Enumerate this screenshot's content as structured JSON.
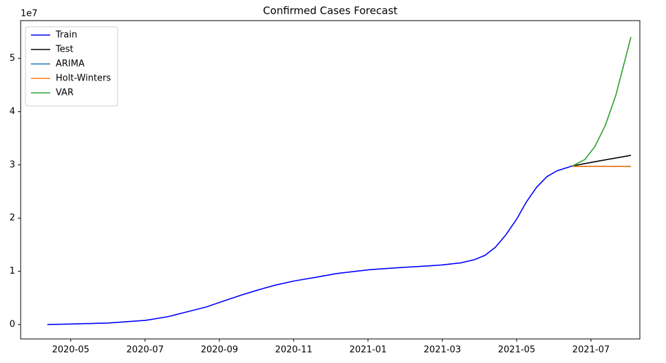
{
  "chart_data": {
    "type": "line",
    "title": "Confirmed Cases Forecast",
    "y_offset_label": "1e7",
    "xlim": [
      2020.221,
      2021.6096
    ],
    "ylim": [
      -0.27,
      5.71
    ],
    "xticks": [
      {
        "value": 2020.3333,
        "label": "2020-05"
      },
      {
        "value": 2020.5,
        "label": "2020-07"
      },
      {
        "value": 2020.6667,
        "label": "2020-09"
      },
      {
        "value": 2020.8333,
        "label": "2020-11"
      },
      {
        "value": 2021.0,
        "label": "2021-01"
      },
      {
        "value": 2021.1667,
        "label": "2021-03"
      },
      {
        "value": 2021.3333,
        "label": "2021-05"
      },
      {
        "value": 2021.5,
        "label": "2021-07"
      }
    ],
    "yticks": [
      0,
      1,
      2,
      3,
      4,
      5
    ],
    "legend": "upper-left",
    "series": [
      {
        "name": "Train",
        "color": "#0000ff",
        "x": [
          2020.2808,
          2020.3333,
          2020.4182,
          2020.5015,
          2020.5524,
          2020.5848,
          2020.6373,
          2020.6682,
          2020.7145,
          2020.7531,
          2020.7916,
          2020.8348,
          2020.8842,
          2020.9305,
          2020.9614,
          2021.0031,
          2021.0694,
          2021.1311,
          2021.1651,
          2021.2083,
          2021.2392,
          2021.2623,
          2021.2855,
          2021.3086,
          2021.3333,
          2021.3549,
          2021.3781,
          2021.4012,
          2021.4243,
          2021.4583
        ],
        "values": [
          0,
          0.01,
          0.03,
          0.08,
          0.15,
          0.22,
          0.33,
          0.42,
          0.55,
          0.65,
          0.74,
          0.82,
          0.89,
          0.96,
          0.99,
          1.03,
          1.07,
          1.1,
          1.12,
          1.16,
          1.22,
          1.3,
          1.45,
          1.68,
          1.98,
          2.3,
          2.58,
          2.78,
          2.89,
          2.98
        ]
      },
      {
        "name": "Test",
        "color": "#000000",
        "x": [
          2021.4583,
          2021.5092,
          2021.5895
        ],
        "values": [
          2.98,
          3.06,
          3.18
        ]
      },
      {
        "name": "ARIMA",
        "color": "#1f77b4",
        "x": [
          2021.4583,
          2021.5895
        ],
        "values": [
          2.97,
          2.97
        ]
      },
      {
        "name": "Holt-Winters",
        "color": "#ff7f0e",
        "x": [
          2021.4583,
          2021.5895
        ],
        "values": [
          2.97,
          2.97
        ]
      },
      {
        "name": "VAR",
        "color": "#2ca02c",
        "x": [
          2021.4583,
          2021.4861,
          2021.5092,
          2021.5324,
          2021.5555,
          2021.571,
          2021.5895
        ],
        "values": [
          2.98,
          3.1,
          3.35,
          3.75,
          4.3,
          4.8,
          5.4
        ]
      }
    ]
  }
}
